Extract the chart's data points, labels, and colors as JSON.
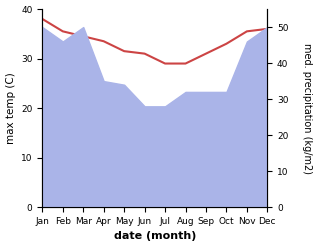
{
  "months": [
    "Jan",
    "Feb",
    "Mar",
    "Apr",
    "May",
    "Jun",
    "Jul",
    "Aug",
    "Sep",
    "Oct",
    "Nov",
    "Dec"
  ],
  "month_indices": [
    0,
    1,
    2,
    3,
    4,
    5,
    6,
    7,
    8,
    9,
    10,
    11
  ],
  "max_temp": [
    38.0,
    35.5,
    34.5,
    33.5,
    31.5,
    31.0,
    29.0,
    29.0,
    31.0,
    33.0,
    35.5,
    36.0
  ],
  "precipitation": [
    50,
    46,
    50,
    35,
    34,
    28,
    28,
    32,
    32,
    32,
    46,
    50
  ],
  "temp_color": "#cc4444",
  "precip_color": "#aab4e8",
  "precip_edge_color": "#9999cc",
  "temp_ylim": [
    0,
    40
  ],
  "precip_ylim": [
    0,
    55
  ],
  "temp_yticks": [
    0,
    10,
    20,
    30,
    40
  ],
  "precip_yticks": [
    0,
    10,
    20,
    30,
    40,
    50
  ],
  "ylabel_left": "max temp (C)",
  "ylabel_right": "med. precipitation (kg/m2)",
  "xlabel": "date (month)",
  "bg_color": "#ffffff",
  "fig_width": 3.18,
  "fig_height": 2.47,
  "dpi": 100
}
